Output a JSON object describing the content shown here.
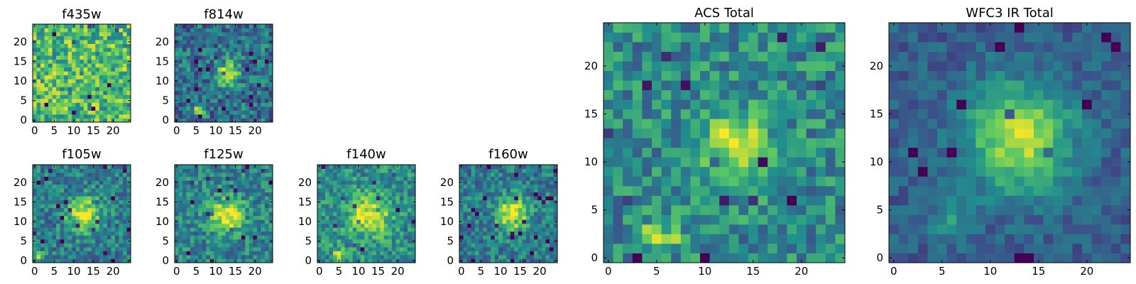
{
  "chart_data": [
    {
      "type": "heatmap",
      "title": "f435w",
      "xticks": [
        0,
        5,
        10,
        15,
        20
      ],
      "yticks": [
        0,
        5,
        10,
        15,
        20
      ],
      "xlim": [
        -0.5,
        24.5
      ],
      "ylim": [
        -0.5,
        24.5
      ],
      "grid_size": 25,
      "peaks": [],
      "noise": 0.55,
      "base": 0.68,
      "seed": 11
    },
    {
      "type": "heatmap",
      "title": "f814w",
      "xticks": [
        0,
        5,
        10,
        15,
        20
      ],
      "yticks": [
        0,
        5,
        10,
        15,
        20
      ],
      "xlim": [
        -0.5,
        24.5
      ],
      "ylim": [
        -0.5,
        24.5
      ],
      "grid_size": 25,
      "peaks": [
        {
          "x": 13,
          "y": 12,
          "amp": 0.5,
          "sigma": 2.2
        },
        {
          "x": 5.5,
          "y": 2.5,
          "amp": 0.6,
          "sigma": 1.0
        }
      ],
      "noise": 0.45,
      "base": 0.38,
      "seed": 23
    },
    {
      "type": "heatmap",
      "title": "f105w",
      "xticks": [
        0,
        5,
        10,
        15,
        20
      ],
      "yticks": [
        0,
        5,
        10,
        15,
        20
      ],
      "xlim": [
        -0.5,
        24.5
      ],
      "ylim": [
        -0.5,
        24.5
      ],
      "grid_size": 25,
      "peaks": [
        {
          "x": 12.5,
          "y": 12,
          "amp": 0.55,
          "sigma": 3.0
        },
        {
          "x": 1,
          "y": 1,
          "amp": 0.4,
          "sigma": 1.0
        }
      ],
      "noise": 0.4,
      "base": 0.42,
      "seed": 37
    },
    {
      "type": "heatmap",
      "title": "f125w",
      "xticks": [
        0,
        5,
        10,
        15,
        20
      ],
      "yticks": [
        0,
        5,
        10,
        15,
        20
      ],
      "xlim": [
        -0.5,
        24.5
      ],
      "ylim": [
        -0.5,
        24.5
      ],
      "grid_size": 25,
      "peaks": [
        {
          "x": 13,
          "y": 11.5,
          "amp": 0.55,
          "sigma": 3.0
        }
      ],
      "noise": 0.4,
      "base": 0.45,
      "seed": 41
    },
    {
      "type": "heatmap",
      "title": "f140w",
      "xticks": [
        0,
        5,
        10,
        15,
        20
      ],
      "yticks": [
        0,
        5,
        10,
        15,
        20
      ],
      "xlim": [
        -0.5,
        24.5
      ],
      "ylim": [
        -0.5,
        24.5
      ],
      "grid_size": 25,
      "peaks": [
        {
          "x": 13,
          "y": 11.5,
          "amp": 0.5,
          "sigma": 3.5
        },
        {
          "x": 5,
          "y": 1.5,
          "amp": 0.5,
          "sigma": 1.0
        }
      ],
      "noise": 0.4,
      "base": 0.5,
      "seed": 53
    },
    {
      "type": "heatmap",
      "title": "f160w",
      "xticks": [
        0,
        5,
        10,
        15,
        20
      ],
      "yticks": [
        0,
        5,
        10,
        15,
        20
      ],
      "xlim": [
        -0.5,
        24.5
      ],
      "ylim": [
        -0.5,
        24.5
      ],
      "grid_size": 25,
      "peaks": [
        {
          "x": 13,
          "y": 12,
          "amp": 0.6,
          "sigma": 2.8
        }
      ],
      "noise": 0.38,
      "base": 0.42,
      "seed": 67
    },
    {
      "type": "heatmap",
      "title": "ACS Total",
      "xticks": [
        0,
        5,
        10,
        15,
        20
      ],
      "yticks": [
        0,
        5,
        10,
        15,
        20
      ],
      "xlim": [
        -0.5,
        24.5
      ],
      "ylim": [
        -0.5,
        24.5
      ],
      "grid_size": 25,
      "peaks": [
        {
          "x": 13,
          "y": 12,
          "amp": 0.45,
          "sigma": 2.4
        },
        {
          "x": 5.5,
          "y": 2.5,
          "amp": 0.5,
          "sigma": 1.2
        }
      ],
      "noise": 0.42,
      "base": 0.48,
      "seed": 79
    },
    {
      "type": "heatmap",
      "title": "WFC3 IR Total",
      "xticks": [
        0,
        5,
        10,
        15,
        20
      ],
      "yticks": [
        0,
        5,
        10,
        15,
        20
      ],
      "xlim": [
        -0.5,
        24.5
      ],
      "ylim": [
        -0.5,
        24.5
      ],
      "grid_size": 25,
      "peaks": [
        {
          "x": 13,
          "y": 12.5,
          "amp": 0.6,
          "sigma": 3.8
        },
        {
          "x": 6,
          "y": 4,
          "amp": 0.2,
          "sigma": 1.5
        }
      ],
      "noise": 0.22,
      "base": 0.3,
      "seed": 97
    }
  ],
  "colormap": [
    "#440154",
    "#3b528b",
    "#21908d",
    "#5dc963",
    "#fde725"
  ]
}
